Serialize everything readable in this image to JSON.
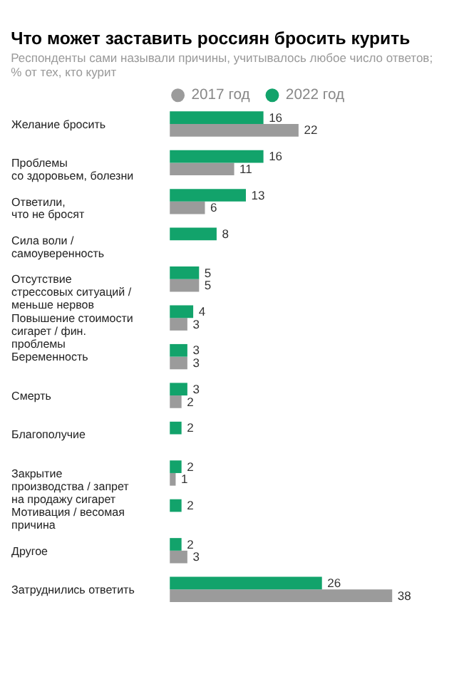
{
  "chart_data": {
    "type": "bar",
    "orientation": "horizontal",
    "title": "Что может заставить россиян бросить курить",
    "subtitle": "Респонденты сами называли причины, учитывалось любое число ответов;\n% от тех, кто курит",
    "categories": [
      "Желание бросить",
      "Проблемы\nсо здоровьем, болезни",
      "Ответили,\nчто не бросят",
      "Сила воли /\nсамоуверенность",
      "Отсутствие\nстрессовых ситуаций /\nменьше нервов",
      "Повышение стоимости\nсигарет / фин.\nпроблемы",
      "Беременность",
      "Смерть",
      "Благополучие",
      "Закрытие\nпроизводства / запрет\nна продажу сигарет",
      "Мотивация / весомая\nпричина",
      "Другое",
      "Затруднились ответить"
    ],
    "series": [
      {
        "name": "2017 год",
        "color": "#9b9b9b",
        "values": [
          22,
          11,
          6,
          null,
          5,
          3,
          3,
          2,
          null,
          1,
          null,
          3,
          38
        ]
      },
      {
        "name": "2022 год",
        "color": "#12a36b",
        "values": [
          16,
          16,
          13,
          8,
          5,
          4,
          3,
          3,
          2,
          2,
          2,
          2,
          26
        ]
      }
    ],
    "data_labels": true,
    "legend": "top",
    "grid": false
  }
}
